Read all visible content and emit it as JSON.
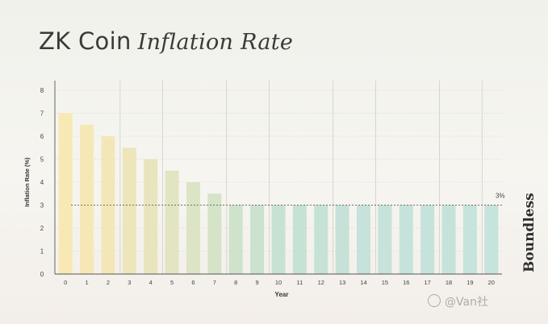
{
  "title": {
    "main": "ZK Coin",
    "italic": "Inflation Rate"
  },
  "brand": "Boundless",
  "watermark": "@Van社",
  "chart_data": {
    "type": "bar",
    "categories": [
      "0",
      "1",
      "2",
      "3",
      "4",
      "5",
      "6",
      "7",
      "8",
      "9",
      "10",
      "11",
      "12",
      "13",
      "14",
      "15",
      "16",
      "17",
      "18",
      "19",
      "20"
    ],
    "values": [
      7,
      6.5,
      6,
      5.5,
      5,
      4.5,
      4,
      3.5,
      3,
      3,
      3,
      3,
      3,
      3,
      3,
      3,
      3,
      3,
      3,
      3,
      3
    ],
    "xlabel": "Year",
    "ylabel": "Inflation Rate (%)",
    "ylim": [
      0,
      8
    ],
    "yticks": [
      0,
      1,
      2,
      3,
      4,
      5,
      6,
      7,
      8
    ],
    "annotation": {
      "text": "3%",
      "value": 3
    },
    "grid": true,
    "colors": [
      "#f8e9b4",
      "#f6e8b6",
      "#f3e7b9",
      "#ede6bb",
      "#e8e5be",
      "#e2e4c2",
      "#dce4c6",
      "#d5e3c9",
      "#cfe2cc",
      "#cae2cf",
      "#c7e2d2",
      "#c6e2d5",
      "#c6e2d7",
      "#c6e2d8",
      "#c6e2da",
      "#c6e2da",
      "#c6e3db",
      "#c6e3db",
      "#c6e3db",
      "#c6e3dc",
      "#c6e3dc"
    ]
  }
}
